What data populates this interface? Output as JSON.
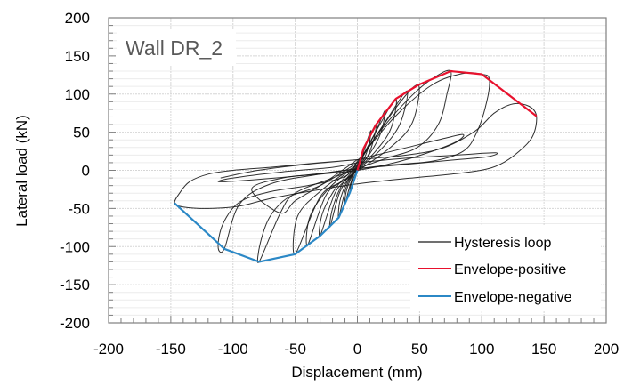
{
  "chart_data": {
    "type": "line",
    "title": "",
    "annotation": "Wall DR_2",
    "xlabel": "Displacement (mm)",
    "ylabel": "Lateral load (kN)",
    "xlim": [
      -200,
      200
    ],
    "ylim": [
      -200,
      200
    ],
    "x_ticks": [
      -200,
      -150,
      -100,
      -50,
      0,
      50,
      100,
      150,
      200
    ],
    "y_ticks": [
      200,
      150,
      100,
      50,
      0,
      -50,
      -100,
      -150,
      -200
    ],
    "x_tick_labels": [
      "-200",
      "-150",
      "-100",
      "-50",
      "0",
      "50",
      "100",
      "150",
      "200"
    ],
    "y_tick_labels": [
      "200",
      "150",
      "100",
      "50",
      "0",
      "-50",
      "-100",
      "-150",
      "-200"
    ],
    "x_minor_step": 10,
    "y_minor_step": 10,
    "grid": true,
    "legend_position": "bottom-right",
    "legend": [
      {
        "name": "Hysteresis loop",
        "color": "#1a1a1a"
      },
      {
        "name": "Envelope-positive",
        "color": "#e8112d"
      },
      {
        "name": "Envelope-negative",
        "color": "#2b88c6"
      }
    ],
    "series": [
      {
        "name": "Envelope-positive",
        "color": "#e8112d",
        "points": [
          [
            0,
            0
          ],
          [
            5,
            29
          ],
          [
            15,
            60
          ],
          [
            31,
            94
          ],
          [
            49,
            112
          ],
          [
            75,
            130
          ],
          [
            100,
            126
          ],
          [
            144,
            71
          ]
        ]
      },
      {
        "name": "Envelope-negative",
        "color": "#2b88c6",
        "points": [
          [
            0,
            0
          ],
          [
            -6,
            -29
          ],
          [
            -15,
            -62
          ],
          [
            -30,
            -86
          ],
          [
            -50,
            -110
          ],
          [
            -79,
            -120
          ],
          [
            -107,
            -103
          ],
          [
            -147,
            -43
          ]
        ]
      },
      {
        "name": "Hysteresis loop",
        "color": "#1a1a1a",
        "loops": [
          [
            [
              0,
              0
            ],
            [
              3,
              18
            ],
            [
              5,
              29
            ],
            [
              4,
              15
            ],
            [
              2,
              4
            ],
            [
              -1,
              -3
            ],
            [
              -3,
              -16
            ],
            [
              -6,
              -29
            ],
            [
              -5,
              -17
            ],
            [
              -2,
              -6
            ],
            [
              0,
              0
            ]
          ],
          [
            [
              0,
              2
            ],
            [
              8,
              40
            ],
            [
              11,
              52
            ],
            [
              9,
              32
            ],
            [
              5,
              14
            ],
            [
              -2,
              -2
            ],
            [
              -6,
              -20
            ],
            [
              -10,
              -44
            ],
            [
              -9,
              -28
            ],
            [
              -5,
              -10
            ],
            [
              0,
              2
            ]
          ],
          [
            [
              0,
              4
            ],
            [
              10,
              45
            ],
            [
              15,
              60
            ],
            [
              13,
              40
            ],
            [
              8,
              18
            ],
            [
              -3,
              -4
            ],
            [
              -9,
              -22
            ],
            [
              -15,
              -62
            ],
            [
              -14,
              -40
            ],
            [
              -8,
              -14
            ],
            [
              0,
              4
            ]
          ],
          [
            [
              0,
              5
            ],
            [
              14,
              48
            ],
            [
              22,
              78
            ],
            [
              19,
              50
            ],
            [
              10,
              22
            ],
            [
              -4,
              -6
            ],
            [
              -14,
              -28
            ],
            [
              -22,
              -74
            ],
            [
              -20,
              -50
            ],
            [
              -12,
              -18
            ],
            [
              0,
              5
            ]
          ],
          [
            [
              0,
              6
            ],
            [
              18,
              60
            ],
            [
              31,
              94
            ],
            [
              27,
              55
            ],
            [
              14,
              24
            ],
            [
              -6,
              -8
            ],
            [
              -18,
              -30
            ],
            [
              -30,
              -86
            ],
            [
              -28,
              -56
            ],
            [
              -16,
              -20
            ],
            [
              0,
              6
            ]
          ],
          [
            [
              0,
              7
            ],
            [
              25,
              70
            ],
            [
              40,
              104
            ],
            [
              34,
              60
            ],
            [
              18,
              26
            ],
            [
              -8,
              -10
            ],
            [
              -25,
              -32
            ],
            [
              -40,
              -98
            ],
            [
              -38,
              -60
            ],
            [
              -22,
              -22
            ],
            [
              0,
              7
            ]
          ],
          [
            [
              0,
              8
            ],
            [
              30,
              80
            ],
            [
              49,
              112
            ],
            [
              44,
              62
            ],
            [
              25,
              28
            ],
            [
              -10,
              -12
            ],
            [
              -30,
              -35
            ],
            [
              -50,
              -110
            ],
            [
              -48,
              -60
            ],
            [
              -28,
              -25
            ],
            [
              0,
              8
            ]
          ],
          [
            [
              0,
              10
            ],
            [
              20,
              55
            ],
            [
              45,
              100
            ],
            [
              62,
              122
            ],
            [
              75,
              130
            ],
            [
              72,
              100
            ],
            [
              65,
              60
            ],
            [
              48,
              30
            ],
            [
              20,
              14
            ],
            [
              -20,
              -10
            ],
            [
              -50,
              -30
            ],
            [
              -62,
              -56
            ],
            [
              -79,
              -120
            ],
            [
              -78,
              -95
            ],
            [
              -70,
              -60
            ],
            [
              -55,
              -35
            ],
            [
              -30,
              -20
            ],
            [
              0,
              10
            ]
          ],
          [
            [
              0,
              12
            ],
            [
              30,
              70
            ],
            [
              60,
              112
            ],
            [
              85,
              127
            ],
            [
              100,
              126
            ],
            [
              106,
              120
            ],
            [
              104,
              90
            ],
            [
              96,
              50
            ],
            [
              85,
              25
            ],
            [
              60,
              12
            ],
            [
              20,
              6
            ],
            [
              -30,
              -5
            ],
            [
              -70,
              -18
            ],
            [
              -95,
              -45
            ],
            [
              -107,
              -103
            ],
            [
              -112,
              -100
            ],
            [
              -108,
              -70
            ],
            [
              -95,
              -42
            ],
            [
              -70,
              -28
            ],
            [
              -40,
              -20
            ],
            [
              -10,
              -8
            ],
            [
              0,
              12
            ]
          ],
          [
            [
              0,
              14
            ],
            [
              40,
              30
            ],
            [
              70,
              42
            ],
            [
              85,
              47
            ],
            [
              80,
              38
            ],
            [
              60,
              25
            ],
            [
              30,
              10
            ],
            [
              0,
              0
            ],
            [
              -30,
              -5
            ],
            [
              -60,
              -10
            ],
            [
              -85,
              -25
            ],
            [
              -62,
              -56
            ],
            [
              -50,
              -40
            ],
            [
              -30,
              -20
            ],
            [
              0,
              14
            ]
          ],
          [
            [
              0,
              10
            ],
            [
              40,
              16
            ],
            [
              80,
              20
            ],
            [
              111,
              23
            ],
            [
              105,
              18
            ],
            [
              80,
              14
            ],
            [
              40,
              8
            ],
            [
              0,
              2
            ],
            [
              -40,
              -6
            ],
            [
              -80,
              -12
            ],
            [
              -111,
              -15
            ],
            [
              -100,
              -10
            ],
            [
              -60,
              -2
            ],
            [
              -20,
              4
            ],
            [
              0,
              10
            ]
          ],
          [
            [
              -110,
              -10
            ],
            [
              -80,
              0
            ],
            [
              -40,
              8
            ],
            [
              0,
              14
            ],
            [
              40,
              20
            ],
            [
              70,
              30
            ],
            [
              95,
              52
            ],
            [
              110,
              75
            ],
            [
              125,
              87
            ],
            [
              138,
              84
            ],
            [
              144,
              71
            ],
            [
              141,
              45
            ],
            [
              130,
              25
            ],
            [
              115,
              8
            ],
            [
              99,
              0
            ],
            [
              70,
              -6
            ],
            [
              50,
              -9
            ],
            [
              20,
              -14
            ],
            [
              -10,
              -20
            ],
            [
              -40,
              -28
            ],
            [
              -70,
              -37
            ],
            [
              -95,
              -47
            ],
            [
              -120,
              -50
            ],
            [
              -140,
              -48
            ],
            [
              -147,
              -43
            ],
            [
              -143,
              -30
            ],
            [
              -135,
              -15
            ],
            [
              -120,
              -5
            ],
            [
              -100,
              0
            ],
            [
              -70,
              4
            ],
            [
              -30,
              10
            ],
            [
              0,
              14
            ]
          ]
        ]
      }
    ]
  }
}
